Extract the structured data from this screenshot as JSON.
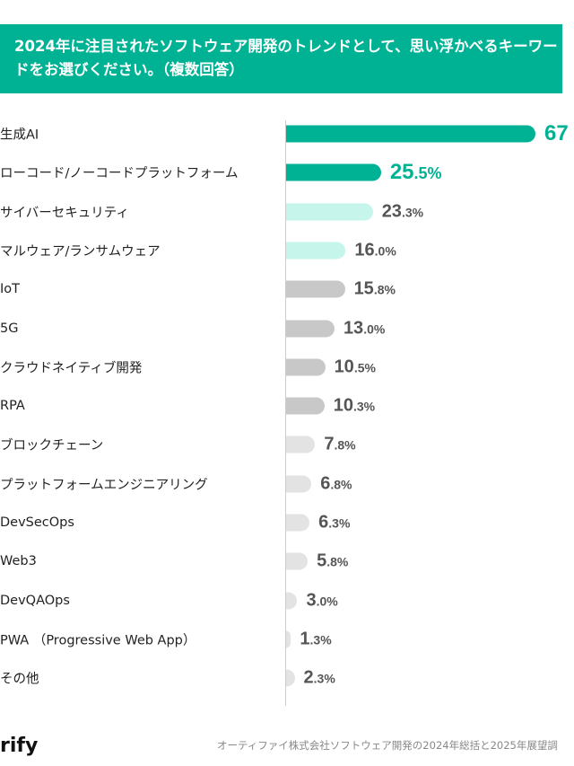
{
  "chart_data": {
    "type": "bar",
    "orientation": "horizontal",
    "title": "2024年に注目されたソフトウェア開発のトレンドとして、思い浮かべるキーワードをお選びください。（複数回答）",
    "categories": [
      "生成AI",
      "ローコード/ノーコードプラットフォーム",
      "サイバーセキュリティ",
      "マルウェア/ランサムウェア",
      "IoT",
      "5G",
      "クラウドネイティブ開発",
      "RPA",
      "ブロックチェーン",
      "プラットフォームエンジニアリング",
      "DevSecOps",
      "Web3",
      "DevQAOps",
      "PWA （Progressive Web App）",
      "その他"
    ],
    "values": [
      67.0,
      25.5,
      23.3,
      16.0,
      15.8,
      13.0,
      10.5,
      10.3,
      7.8,
      6.8,
      6.3,
      5.8,
      3.0,
      1.3,
      2.3
    ],
    "value_labels": [
      [
        "67",
        ""
      ],
      [
        "25",
        ".5%"
      ],
      [
        "23",
        ".3%"
      ],
      [
        "16",
        ".0%"
      ],
      [
        "15",
        ".8%"
      ],
      [
        "13",
        ".0%"
      ],
      [
        "10",
        ".5%"
      ],
      [
        "10",
        ".3%"
      ],
      [
        "7",
        ".8%"
      ],
      [
        "6",
        ".8%"
      ],
      [
        "6",
        ".3%"
      ],
      [
        "5",
        ".8%"
      ],
      [
        "3",
        ".0%"
      ],
      [
        "1",
        ".3%"
      ],
      [
        "2",
        ".3%"
      ]
    ],
    "colors": [
      "#00b294",
      "#00b294",
      "#c5f5eb",
      "#c5f5eb",
      "#c8c8c8",
      "#c8c8c8",
      "#c8c8c8",
      "#c8c8c8",
      "#e3e3e3",
      "#e3e3e3",
      "#e3e3e3",
      "#e3e3e3",
      "#e3e3e3",
      "#e3e3e3",
      "#e3e3e3"
    ],
    "unit": "%"
  },
  "footer": {
    "logo": "rify",
    "source": "オーティファイ株式会社ソフトウェア開発の2024年総括と2025年展望調"
  }
}
